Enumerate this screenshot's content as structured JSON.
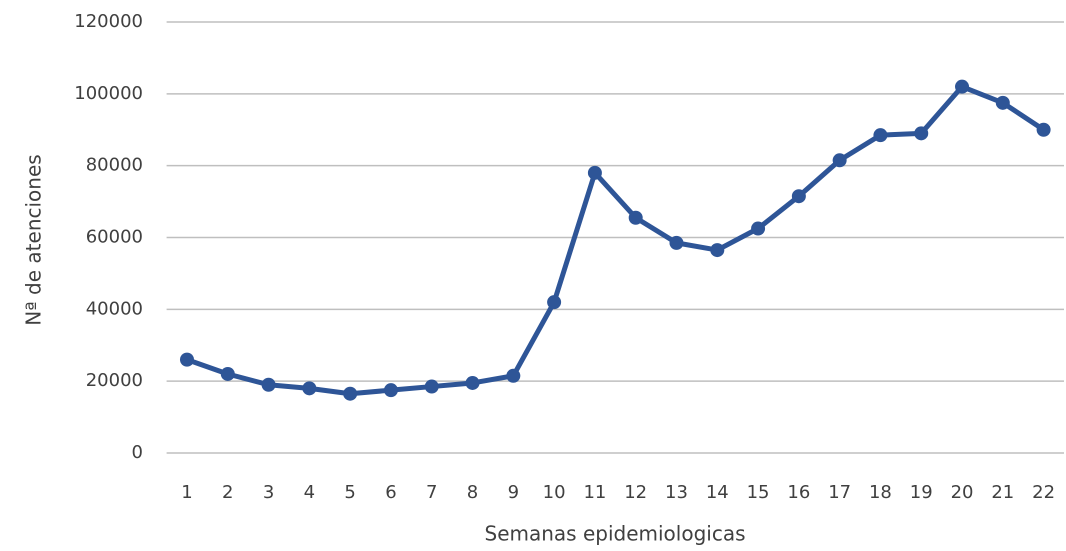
{
  "chart_data": {
    "type": "line",
    "x_label": "Semanas epidemiologicas",
    "y_label": "Nª de atenciones",
    "categories": [
      "1",
      "2",
      "3",
      "4",
      "5",
      "6",
      "7",
      "8",
      "9",
      "10",
      "11",
      "12",
      "13",
      "14",
      "15",
      "16",
      "17",
      "18",
      "19",
      "20",
      "21",
      "22"
    ],
    "values": [
      26000,
      22000,
      19000,
      18000,
      16500,
      17500,
      18500,
      19500,
      21500,
      42000,
      78000,
      65500,
      58500,
      56500,
      62500,
      71500,
      81500,
      88500,
      89000,
      102000,
      97500,
      90000
    ],
    "color": "#2e5597",
    "ylim": [
      0,
      120000
    ],
    "yticks": [
      0,
      20000,
      40000,
      60000,
      80000,
      100000,
      120000
    ],
    "grid": true
  }
}
